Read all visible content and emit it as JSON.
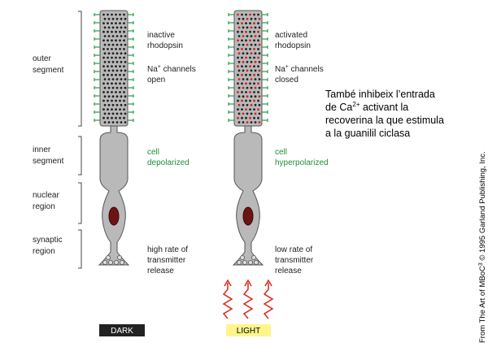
{
  "regions": [
    {
      "lines": [
        "outer",
        "segment"
      ]
    },
    {
      "lines": [
        "inner",
        "segment"
      ]
    },
    {
      "lines": [
        "nuclear",
        "region"
      ]
    },
    {
      "lines": [
        "synaptic",
        "region"
      ]
    }
  ],
  "cells": [
    {
      "rhodopsin": [
        "inactive",
        "rhodopsin"
      ],
      "channels": {
        "ion": "Na",
        "charge": "+",
        "lines": [
          " channels",
          "open"
        ]
      },
      "state": [
        "cell",
        "depolarized"
      ],
      "release": [
        "high rate of",
        "transmitter",
        "release"
      ],
      "condition": "DARK"
    },
    {
      "rhodopsin": [
        "activated",
        "rhodopsin"
      ],
      "channels": {
        "ion": "Na",
        "charge": "+",
        "lines": [
          " channels",
          "closed"
        ]
      },
      "state": [
        "cell",
        "hyperpolarized"
      ],
      "release": [
        "low rate of",
        "transmitter",
        "release"
      ],
      "condition": "LIGHT"
    }
  ],
  "note": {
    "line1": "També inhibeix l’entrada",
    "line2": {
      "before": "de  ",
      "ion": "Ca",
      "charge": "2+",
      "after": " activant la"
    },
    "line3": "recoverina la que estimula",
    "line4": "a la guanilil ciclasa"
  },
  "credit": {
    "before": "From The Art of MBoC",
    "sup": "3",
    "after": " © 1995 Garland Publishing, Inc."
  }
}
